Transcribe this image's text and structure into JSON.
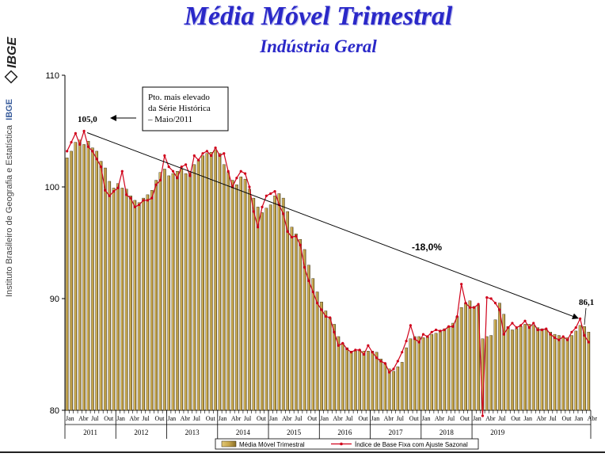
{
  "header": {
    "title": "Média Móvel Trimestral",
    "subtitle": "Indústria Geral"
  },
  "sidebar": {
    "logo_text": "IBGE",
    "institute_text": "Instituto Brasileiro de Geografia e Estatística",
    "institute_abbrev": "IBGE"
  },
  "chart_data": {
    "type": "bar",
    "title": "Média Móvel Trimestral",
    "subtitle": "Indústria Geral",
    "ylim": [
      80,
      110
    ],
    "yticks": [
      80,
      90,
      100,
      110
    ],
    "month_labels": [
      "Jan",
      "Abr",
      "Jul",
      "Out"
    ],
    "years": [
      "2011",
      "2012",
      "2013",
      "2014",
      "2015",
      "2016",
      "2017",
      "2018",
      "2019"
    ],
    "legend": {
      "position": "bottom",
      "bar_label": "Média Móvel Trimestral",
      "line_label": "Índice de Base Fixa com Ajuste Sazonal"
    },
    "annotations": {
      "box_text": [
        "Pto. mais elevado",
        "da Série Histórica",
        "– Maio/2011"
      ],
      "peak_label": "105,0",
      "end_label": "86,1",
      "change_label": "-18,0%"
    },
    "colors": {
      "bar_fill": "#c9a84c",
      "bar_stroke": "#2a2310",
      "line": "#d0021b"
    },
    "series": [
      {
        "name": "Média Móvel Trimestral",
        "values": [
          102.6,
          103.2,
          104.0,
          104.2,
          103.8,
          104.1,
          103.5,
          103.2,
          102.3,
          101.7,
          100.5,
          99.9,
          100.3,
          99.9,
          99.8,
          99.2,
          98.8,
          98.6,
          99.0,
          99.3,
          99.7,
          100.6,
          101.3,
          101.6,
          101.0,
          101.2,
          101.4,
          101.6,
          101.2,
          101.3,
          102.0,
          102.4,
          102.8,
          103.0,
          103.1,
          103.3,
          103.0,
          102.0,
          101.3,
          100.6,
          100.2,
          100.9,
          100.7,
          99.8,
          99.0,
          98.2,
          97.7,
          98.1,
          98.4,
          99.2,
          99.4,
          99.0,
          97.8,
          96.4,
          95.8,
          95.3,
          94.4,
          93.0,
          91.8,
          90.6,
          89.7,
          88.9,
          88.3,
          87.7,
          86.6,
          86.0,
          85.6,
          85.3,
          85.3,
          85.4,
          85.3,
          85.3,
          85.3,
          85.2,
          84.6,
          84.2,
          83.7,
          83.5,
          83.9,
          84.3,
          85.6,
          86.4,
          86.6,
          86.6,
          86.5,
          86.6,
          86.8,
          86.9,
          87.1,
          87.3,
          87.5,
          87.8,
          88.4,
          89.2,
          89.6,
          89.8,
          89.3,
          89.4,
          86.4,
          86.6,
          86.7,
          88.1,
          89.6,
          88.6,
          87.5,
          87.2,
          87.3,
          87.5,
          87.7,
          87.7,
          87.6,
          87.4,
          87.3,
          87.2,
          87.0,
          86.8,
          86.7,
          86.5,
          86.5,
          86.7,
          87.1,
          87.6,
          87.5,
          87.0
        ]
      },
      {
        "name": "Índice de Base Fixa com Ajuste Sazonal",
        "values": [
          103.2,
          104.0,
          104.8,
          103.8,
          105.0,
          103.6,
          103.2,
          102.5,
          101.8,
          99.7,
          99.2,
          99.6,
          99.9,
          101.4,
          99.3,
          99.0,
          98.2,
          98.4,
          98.8,
          98.8,
          99.0,
          100.2,
          100.6,
          102.8,
          101.8,
          101.4,
          100.8,
          101.8,
          102.0,
          101.0,
          102.8,
          102.4,
          103.0,
          103.2,
          102.8,
          103.5,
          102.8,
          103.0,
          101.4,
          100.0,
          100.8,
          101.4,
          101.2,
          100.0,
          97.8,
          96.4,
          98.2,
          99.2,
          99.4,
          99.6,
          98.4,
          97.6,
          96.0,
          95.5,
          95.6,
          94.8,
          92.8,
          91.6,
          90.6,
          89.6,
          89.0,
          88.4,
          88.3,
          87.0,
          85.8,
          86.0,
          85.5,
          85.2,
          85.4,
          85.4,
          85.0,
          85.8,
          85.2,
          84.7,
          84.4,
          84.2,
          83.4,
          83.7,
          84.4,
          85.2,
          86.2,
          87.6,
          86.4,
          86.1,
          86.8,
          86.6,
          87.0,
          87.2,
          87.1,
          87.2,
          87.5,
          87.5,
          88.4,
          91.3,
          89.6,
          89.2,
          89.2,
          89.5,
          79.5,
          90.1,
          90.0,
          89.6,
          89.0,
          86.8,
          87.4,
          87.8,
          87.4,
          87.6,
          88.0,
          87.4,
          87.8,
          87.2,
          87.2,
          87.3,
          86.8,
          86.5,
          86.3,
          86.6,
          86.3,
          87.0,
          87.4,
          88.2,
          86.7,
          86.1
        ]
      }
    ]
  }
}
